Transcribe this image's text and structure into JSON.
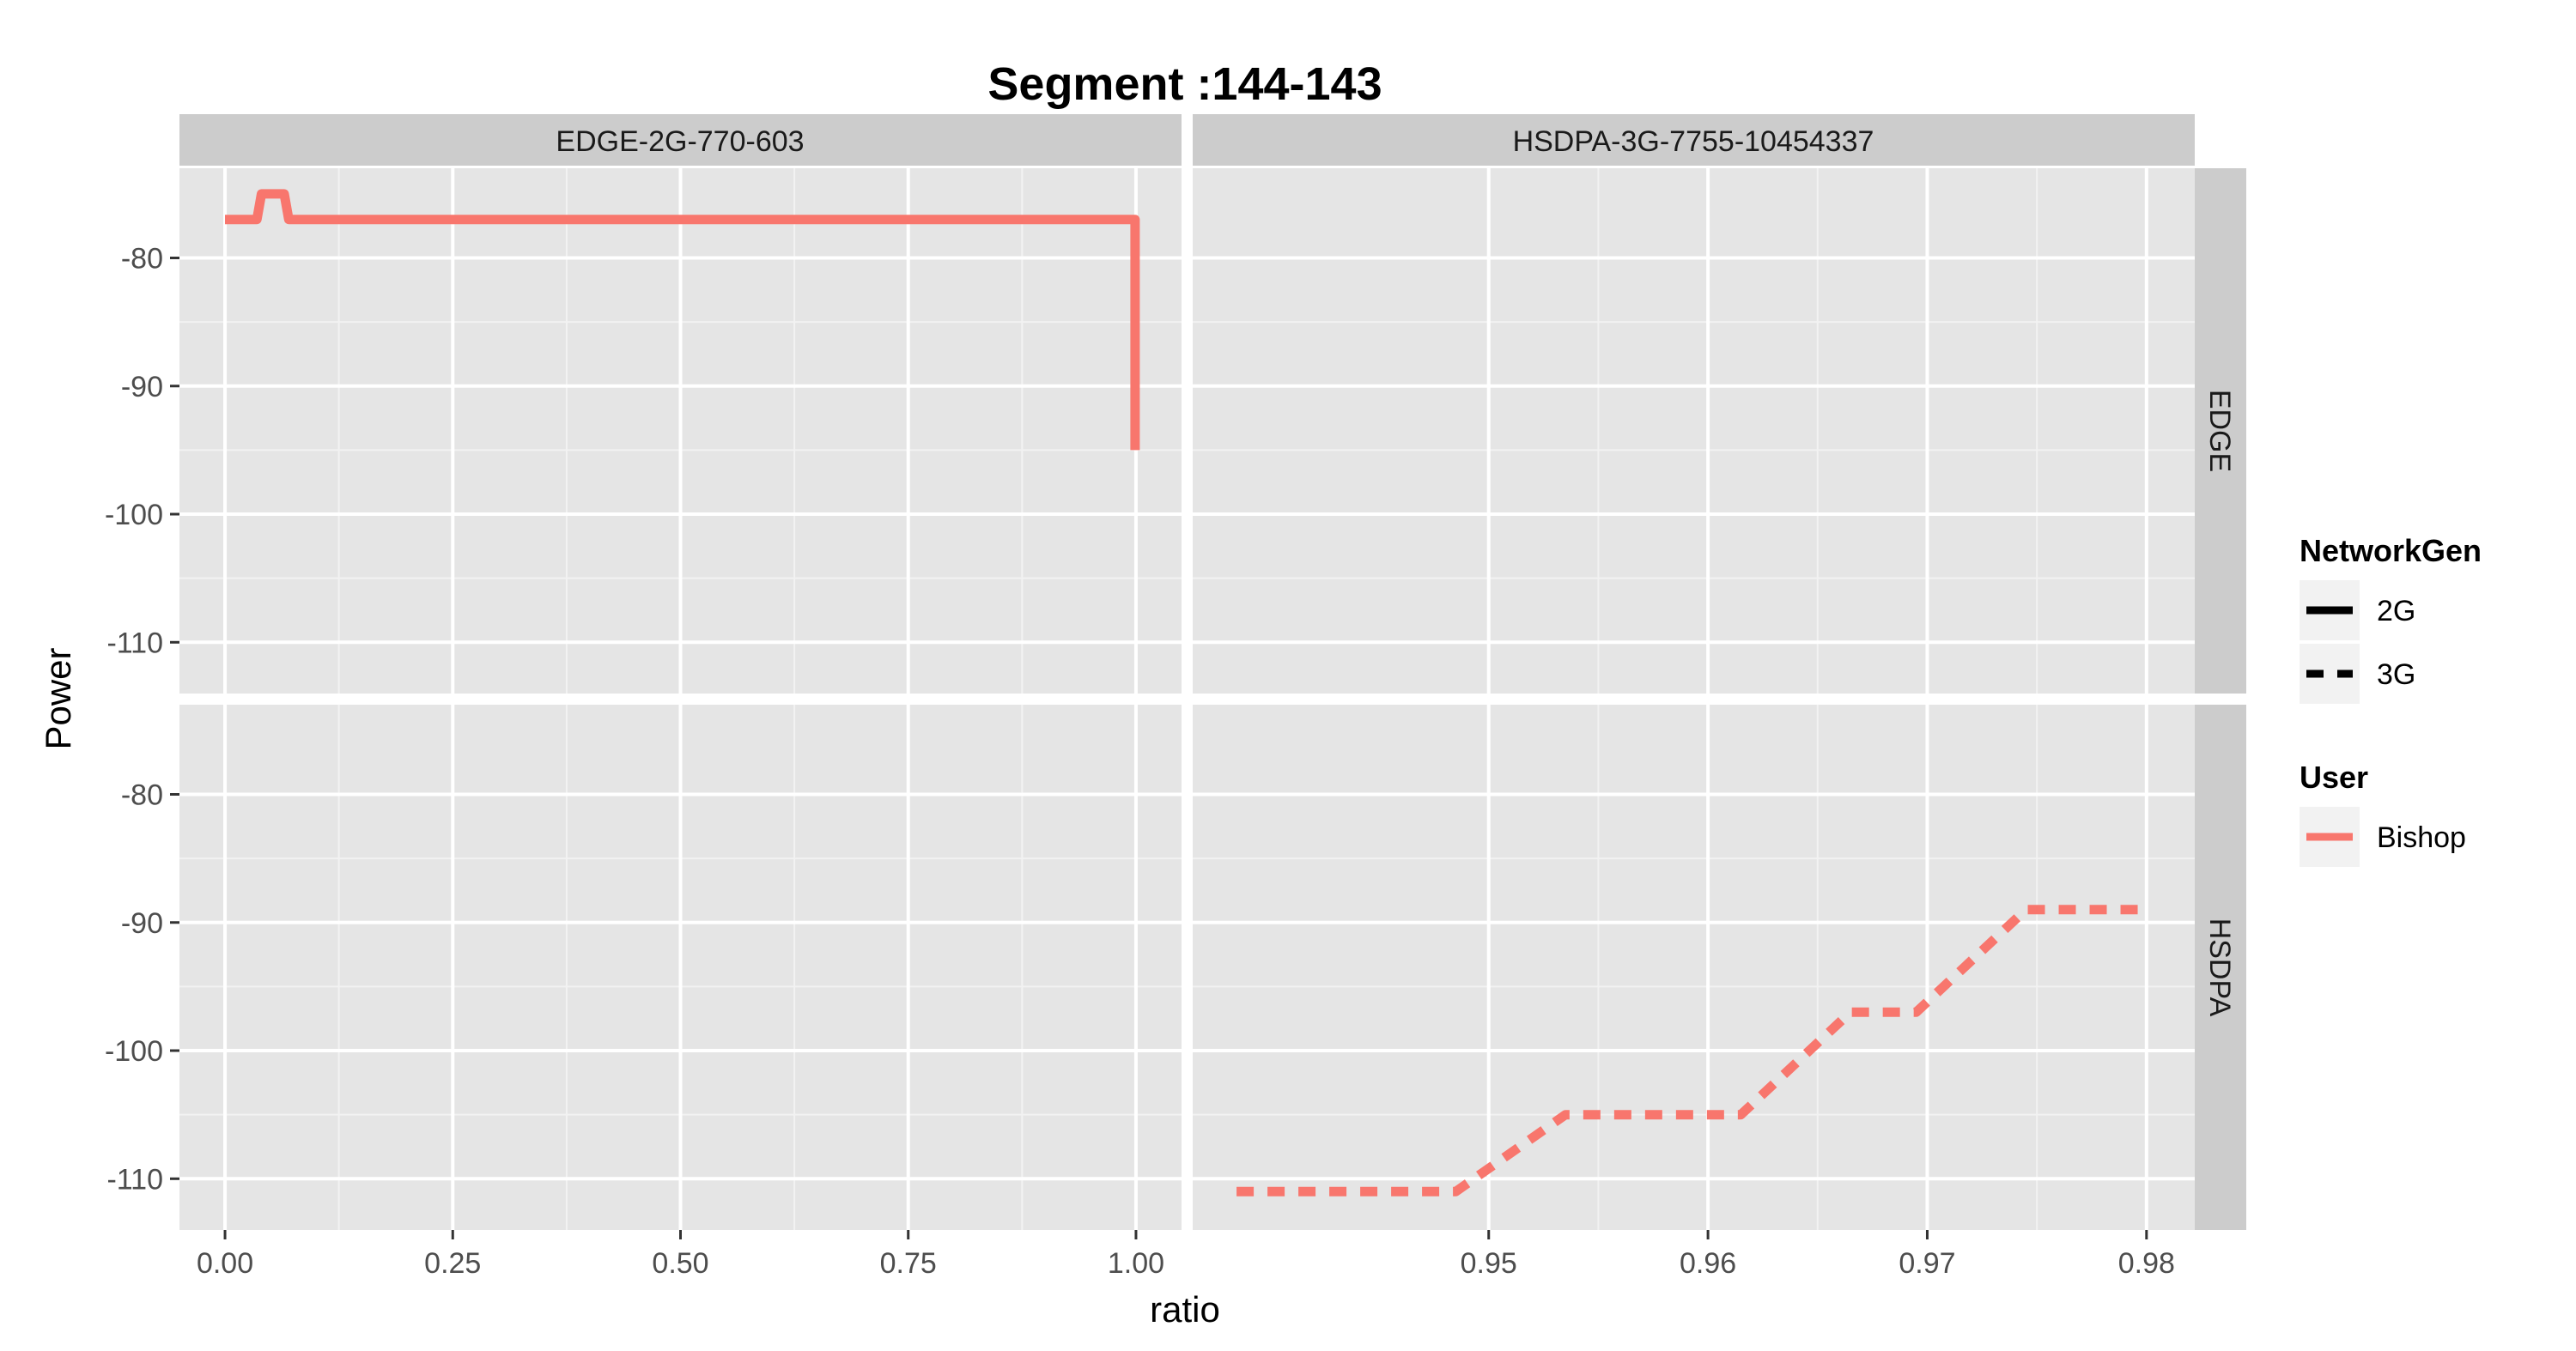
{
  "chart_data": {
    "type": "line",
    "title": "Segment :144-143",
    "xlabel": "ratio",
    "ylabel": "Power",
    "column_facets": [
      "EDGE-2G-770-603",
      "HSDPA-3G-7755-10454337"
    ],
    "row_facets": [
      "EDGE",
      "HSDPA"
    ],
    "ylim": [
      -114,
      -73
    ],
    "y_ticks": [
      -80,
      -90,
      -100,
      -110
    ],
    "y_tick_labels": [
      "-80",
      "-90",
      "-100",
      "-110"
    ],
    "columns": [
      {
        "name": "EDGE-2G-770-603",
        "xlim": [
          -0.05,
          1.05
        ],
        "x_ticks": [
          0,
          0.25,
          0.5,
          0.75,
          1.0
        ],
        "x_tick_labels": [
          "0.00",
          "0.25",
          "0.50",
          "0.75",
          "1.00"
        ]
      },
      {
        "name": "HSDPA-3G-7755-10454337",
        "xlim": [
          0.9365,
          0.9822
        ],
        "x_ticks": [
          0.95,
          0.96,
          0.97,
          0.98
        ],
        "x_tick_labels": [
          "0.95",
          "0.96",
          "0.97",
          "0.98"
        ]
      }
    ],
    "series": [
      {
        "panel": "EDGE / EDGE-2G-770-603",
        "user": "Bishop",
        "network_gen": "2G",
        "x": [
          0.0,
          0.035,
          0.04,
          0.065,
          0.07,
          0.999,
          0.999
        ],
        "y": [
          -77,
          -77,
          -75,
          -75,
          -77,
          -77,
          -95
        ]
      },
      {
        "panel": "HSDPA / HSDPA-3G-7755-10454337",
        "user": "Bishop",
        "network_gen": "3G",
        "x": [
          0.9385,
          0.9485,
          0.9535,
          0.9615,
          0.9665,
          0.9695,
          0.9745,
          0.9802
        ],
        "y": [
          -111,
          -111,
          -105,
          -105,
          -97,
          -97,
          -89,
          -89
        ]
      }
    ],
    "legend": {
      "placement": "right",
      "groups": [
        {
          "title": "NetworkGen",
          "items": [
            "2G",
            "3G"
          ]
        },
        {
          "title": "User",
          "items": [
            "Bishop"
          ]
        }
      ]
    },
    "colors": {
      "Bishop": "#F8766D",
      "panel_bg": "#E5E5E5",
      "strip_bg": "#CCCCCC",
      "grid_major": "#FFFFFF",
      "grid_minor": "#F2F2F2"
    },
    "grid": true
  }
}
